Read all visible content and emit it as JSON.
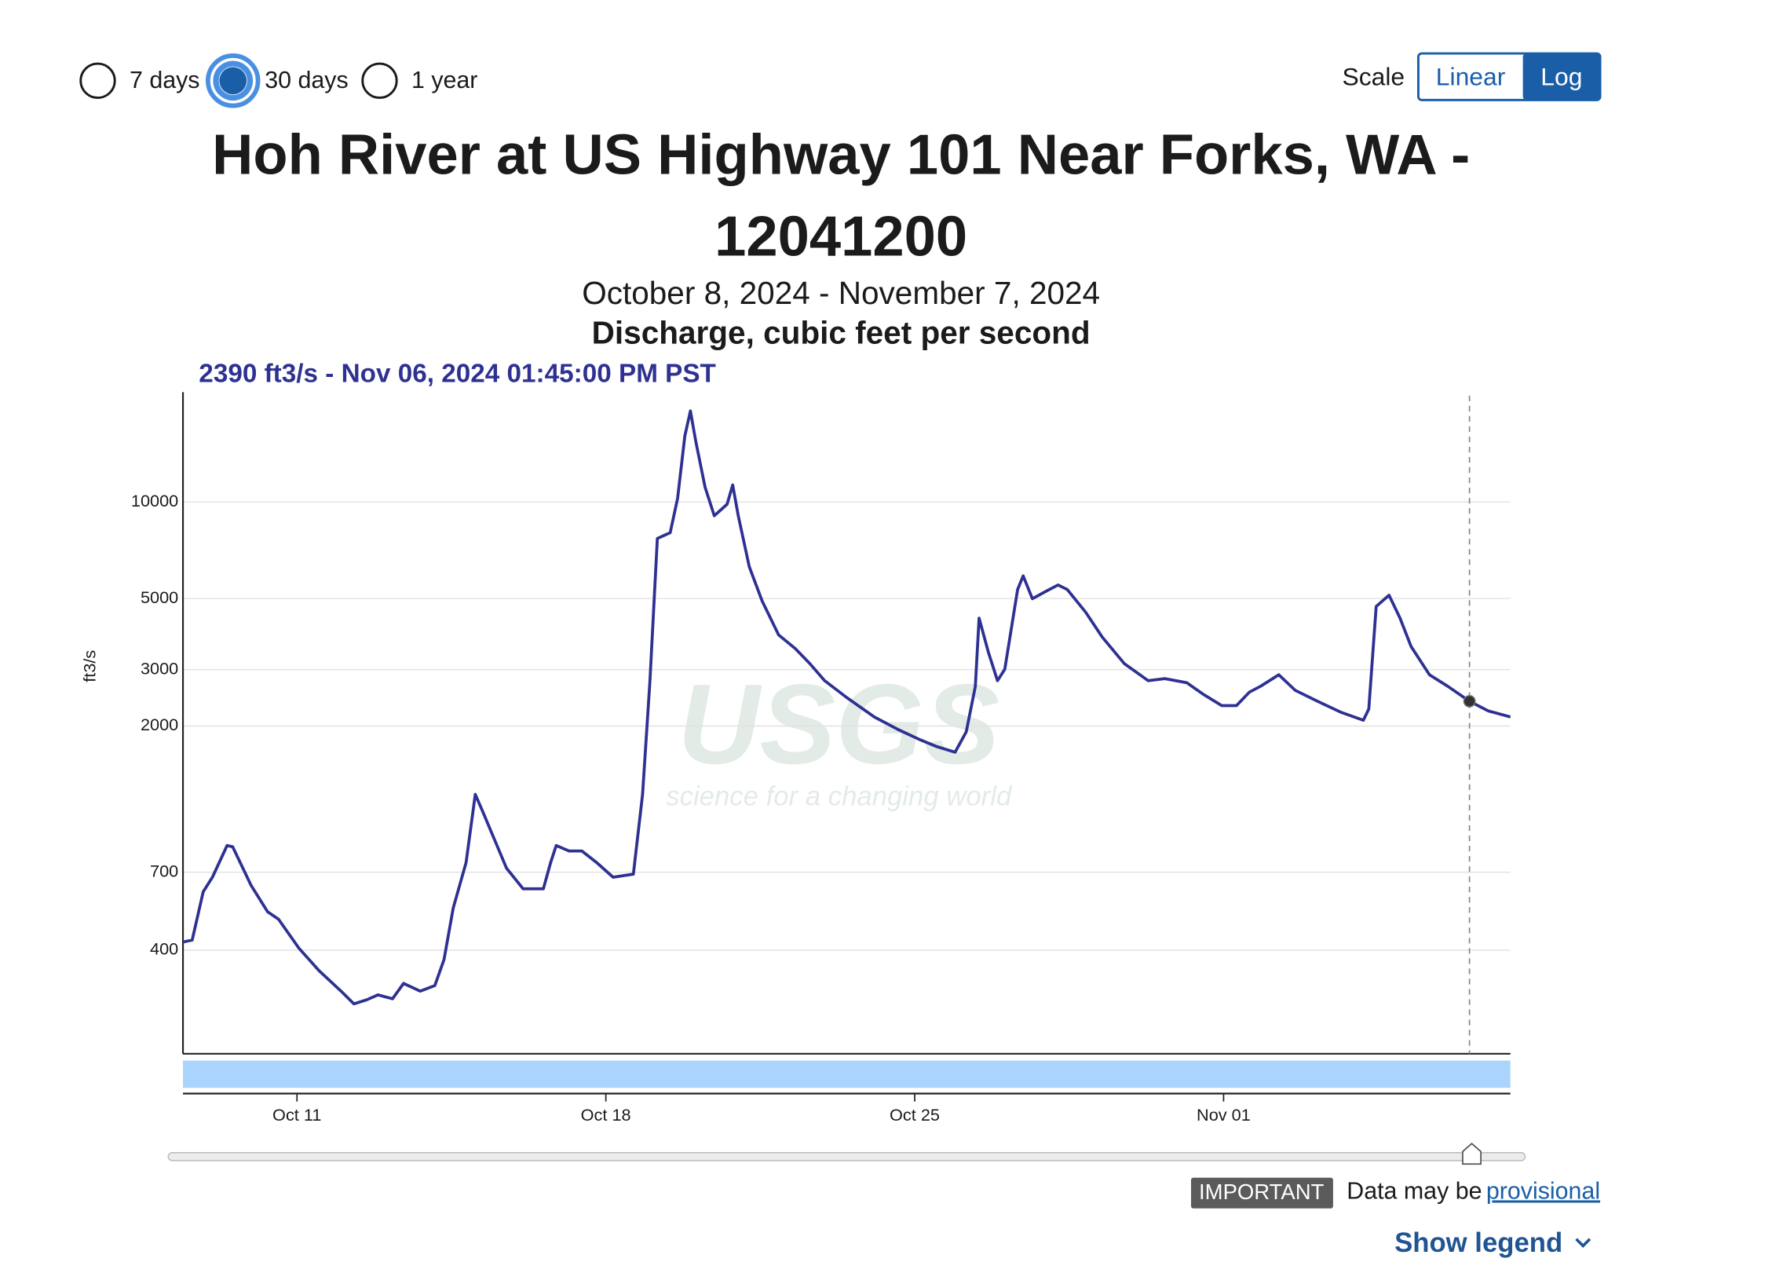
{
  "controls": {
    "periods": [
      "7 days",
      "30 days",
      "1 year"
    ],
    "selected_period": "30 days",
    "scale_label": "Scale",
    "scale_options": [
      "Linear",
      "Log"
    ]
  },
  "chart_data": {
    "type": "line",
    "title": "Hoh River at US Highway 101 Near Forks, WA - 12041200",
    "subtitle": "October 8, 2024 - November 7, 2024",
    "axis_title": "Discharge, cubic feet per second",
    "ylabel": "ft3/s",
    "log_scale": true,
    "grid": true,
    "color": "#2e3192",
    "x": [
      "2024-10-08T10:00",
      "2024-10-08T15:00",
      "2024-10-08T21:00",
      "2024-10-09T02:00",
      "2024-10-09T10:00",
      "2024-10-09T13:00",
      "2024-10-09T23:00",
      "2024-10-10T08:00",
      "2024-10-10T14:00",
      "2024-10-11T01:00",
      "2024-10-11T12:00",
      "2024-10-12T00:00",
      "2024-10-12T07:00",
      "2024-10-12T14:00",
      "2024-10-12T20:00",
      "2024-10-13T04:00",
      "2024-10-13T10:00",
      "2024-10-13T19:00",
      "2024-10-14T03:00",
      "2024-10-14T08:00",
      "2024-10-14T13:00",
      "2024-10-14T20:00",
      "2024-10-15T01:00",
      "2024-10-15T05:00",
      "2024-10-15T18:00",
      "2024-10-16T03:00",
      "2024-10-16T14:00",
      "2024-10-16T18:00",
      "2024-10-16T21:00",
      "2024-10-17T04:00",
      "2024-10-17T11:00",
      "2024-10-17T19:00",
      "2024-10-18T04:00",
      "2024-10-18T15:00",
      "2024-10-18T20:00",
      "2024-10-19T00:00",
      "2024-10-19T04:00",
      "2024-10-19T08:00",
      "2024-10-19T11:00",
      "2024-10-19T15:00",
      "2024-10-19T19:00",
      "2024-10-19T22:00",
      "2024-10-20T01:00",
      "2024-10-20T06:00",
      "2024-10-20T11:00",
      "2024-10-20T15:00",
      "2024-10-20T18:00",
      "2024-10-20T21:00",
      "2024-10-21T00:00",
      "2024-10-21T06:00",
      "2024-10-21T13:00",
      "2024-10-21T22:00",
      "2024-10-22T07:00",
      "2024-10-22T15:00",
      "2024-10-22T23:00",
      "2024-10-23T11:00",
      "2024-10-24T02:00",
      "2024-10-24T15:00",
      "2024-10-25T03:00",
      "2024-10-25T12:00",
      "2024-10-25T22:00",
      "2024-10-26T04:00",
      "2024-10-26T09:00",
      "2024-10-26T11:00",
      "2024-10-26T16:00",
      "2024-10-26T21:00",
      "2024-10-27T01:00",
      "2024-10-27T08:00",
      "2024-10-27T11:00",
      "2024-10-27T16:00",
      "2024-10-27T23:00",
      "2024-10-28T06:00",
      "2024-10-28T11:00",
      "2024-10-28T21:00",
      "2024-10-29T06:00",
      "2024-10-29T18:00",
      "2024-10-30T07:00",
      "2024-10-30T16:00",
      "2024-10-31T04:00",
      "2024-10-31T13:00",
      "2024-10-31T23:00",
      "2024-11-01T07:00",
      "2024-11-01T14:00",
      "2024-11-01T20:00",
      "2024-11-02T06:00",
      "2024-11-02T15:00",
      "2024-11-03T03:00",
      "2024-11-03T16:00",
      "2024-11-04T04:00",
      "2024-11-04T07:00",
      "2024-11-04T11:00",
      "2024-11-04T18:00",
      "2024-11-05T00:00",
      "2024-11-05T06:00",
      "2024-11-05T16:00",
      "2024-11-06T02:00",
      "2024-11-06T13:45",
      "2024-11-07T00:00",
      "2024-11-07T12:00"
    ],
    "values": [
      424,
      430,
      608,
      675,
      848,
      840,
      637,
      527,
      499,
      406,
      345,
      298,
      272,
      280,
      290,
      282,
      315,
      298,
      310,
      374,
      541,
      750,
      1224,
      1083,
      720,
      621,
      621,
      750,
      848,
      815,
      815,
      750,
      675,
      690,
      1224,
      2773,
      7690,
      7880,
      8020,
      10250,
      16060,
      19230,
      15400,
      11120,
      9060,
      9500,
      9840,
      11300,
      9060,
      6280,
      4910,
      3850,
      3490,
      3130,
      2770,
      2454,
      2135,
      1950,
      1812,
      1725,
      1657,
      1918,
      2660,
      4340,
      3406,
      2770,
      3006,
      5330,
      5880,
      4990,
      5250,
      5510,
      5330,
      4530,
      3787,
      3130,
      2770,
      2810,
      2730,
      2512,
      2316,
      2316,
      2550,
      2660,
      2890,
      2585,
      2392,
      2205,
      2085,
      2260,
      4720,
      5120,
      4340,
      3543,
      2890,
      2660,
      2390,
      2230,
      2135
    ],
    "xlim": [
      "2024-10-08T10:00",
      "2024-11-07T12:00"
    ],
    "xticks": [
      {
        "value": "2024-10-11",
        "label": "Oct 11"
      },
      {
        "value": "2024-10-18",
        "label": "Oct 18"
      },
      {
        "value": "2024-10-25",
        "label": "Oct 25"
      },
      {
        "value": "2024-11-01",
        "label": "Nov 01"
      }
    ],
    "ylim": [
      190,
      22000
    ],
    "yticks": [
      400,
      700,
      2000,
      3000,
      5000,
      10000
    ],
    "highlight": {
      "x": "2024-11-06T13:45",
      "value": 2390
    },
    "highlight_label": "2390 ft3/s - Nov 06, 2024 01:45:00 PM PST"
  },
  "watermark": {
    "logo": "USGS",
    "tagline": "science for a changing world"
  },
  "notice": {
    "badge": "IMPORTANT",
    "text": "Data may be",
    "link": "provisional"
  },
  "legend_toggle": "Show legend"
}
